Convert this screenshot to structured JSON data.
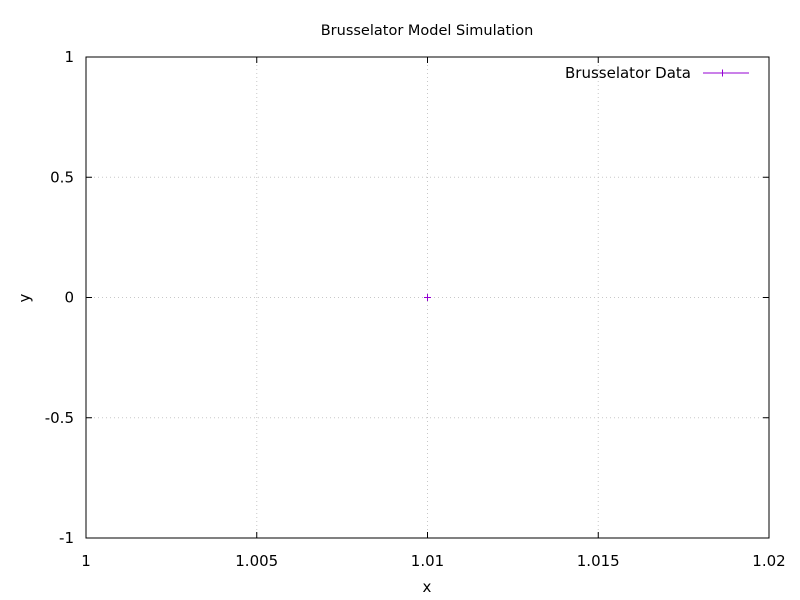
{
  "chart_data": {
    "type": "line",
    "title": "Brusselator Model Simulation",
    "xlabel": "x",
    "ylabel": "y",
    "xlim": [
      1,
      1.02
    ],
    "ylim": [
      -1,
      1
    ],
    "xticks": [
      "1",
      "1.005",
      "1.01",
      "1.015",
      "1.02"
    ],
    "yticks": [
      "1",
      "0.5",
      "0",
      "-0.5",
      "-1"
    ],
    "grid": true,
    "legend_position": "top-right",
    "series": [
      {
        "name": "Brusselator Data",
        "color": "#9400d3",
        "marker": "plus",
        "x": [
          1.01
        ],
        "y": [
          0
        ]
      }
    ]
  }
}
